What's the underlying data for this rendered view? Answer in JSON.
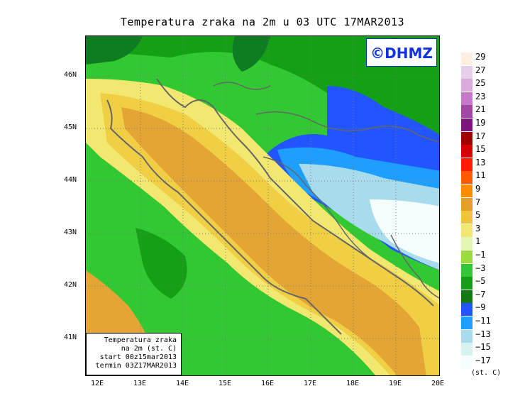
{
  "title": "Temperatura zraka na 2m u 03 UTC 17MAR2013",
  "watermark": "©DHMZ",
  "infobox": {
    "line1": "Temperatura zraka",
    "line2": "na 2m (st. C)",
    "line3": "start 00z15mar2013",
    "line4": "termin 03Z17MAR2013"
  },
  "lat_labels": [
    "46N",
    "45N",
    "44N",
    "43N",
    "42N",
    "41N"
  ],
  "lon_labels": [
    "12E",
    "13E",
    "14E",
    "15E",
    "16E",
    "17E",
    "18E",
    "19E",
    "20E"
  ],
  "legend": {
    "units": "(st. C)",
    "labels": [
      "29",
      "27",
      "25",
      "23",
      "21",
      "19",
      "17",
      "15",
      "13",
      "11",
      "9",
      "7",
      "5",
      "3",
      "1",
      "−1",
      "−3",
      "−5",
      "−7",
      "−9",
      "−11",
      "−13",
      "−15",
      "−17"
    ],
    "colors": [
      "#fdf0e1",
      "#e8cfe8",
      "#d9aadb",
      "#c679c8",
      "#a347a6",
      "#7f147c",
      "#a00000",
      "#d40000",
      "#ff1a00",
      "#ff5a00",
      "#ff8c00",
      "#e59e2b",
      "#f0c43a",
      "#f2e870",
      "#e5f5b3",
      "#9bdc3c",
      "#32c832",
      "#14a014",
      "#137a13",
      "#2255ff",
      "#1e9fff",
      "#a8dcec",
      "#d8f2f2",
      "#f6fdfd"
    ]
  },
  "colors": {
    "sea_warm": "#e5a535",
    "sea_mild": "#f0cf45",
    "coast_yellow": "#f2e870",
    "land_green": "#32c832",
    "land_dark": "#14a014",
    "land_darker": "#0e7d22",
    "cold_blue": "#2255ff",
    "cold_lightblue": "#1e9fff",
    "cold_pale": "#a8dcec",
    "cold_white": "#f6fdfd",
    "coastline": "#666666",
    "hot_orange": "#ff8c00"
  }
}
